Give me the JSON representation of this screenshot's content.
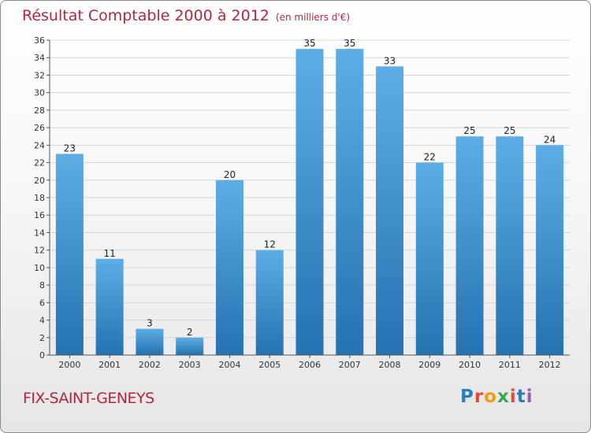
{
  "title": "Résultat Comptable 2000 à 2012",
  "subtitle": "(en milliers d'€)",
  "commune": "FIX-SAINT-GENEYS",
  "logo": {
    "text": "Proxiti",
    "colors": [
      "#2b7fc1",
      "#e8473b",
      "#f39c12",
      "#3aa84a",
      "#e8473b",
      "#2b7fc1",
      "#9b59b6"
    ]
  },
  "colors": {
    "bar_top": "#5daee6",
    "bar_bottom": "#2472b0",
    "title": "#b5263d",
    "grid": "#d6d6d6"
  },
  "chart_data": {
    "type": "bar",
    "categories": [
      "2000",
      "2001",
      "2002",
      "2003",
      "2004",
      "2005",
      "2006",
      "2007",
      "2008",
      "2009",
      "2010",
      "2011",
      "2012"
    ],
    "values": [
      23,
      11,
      3,
      2,
      20,
      12,
      35,
      35,
      33,
      22,
      25,
      25,
      24
    ],
    "ylim": [
      0,
      36
    ],
    "yticks": [
      0,
      2,
      4,
      6,
      8,
      10,
      12,
      14,
      16,
      18,
      20,
      22,
      24,
      26,
      28,
      30,
      32,
      34,
      36
    ],
    "grid": true
  }
}
